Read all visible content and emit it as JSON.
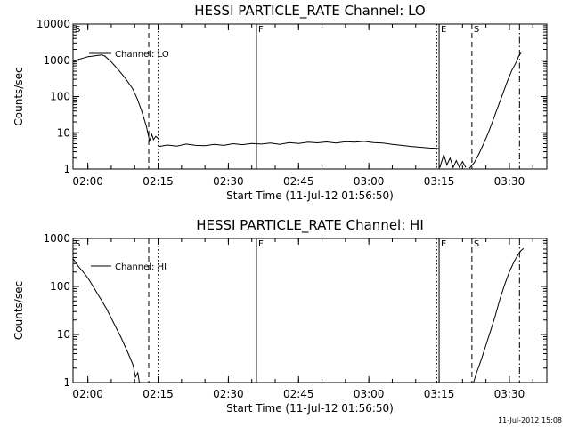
{
  "footer": {
    "timestamp": "11-Jul-2012 15:08"
  },
  "chart_data": [
    {
      "type": "line",
      "title": "HESSI PARTICLE_RATE Channel: LO",
      "xlabel": "Start Time (11-Jul-12 01:56:50)",
      "ylabel": "Counts/sec",
      "xlim": [
        "01:56:50",
        "03:38:00"
      ],
      "ylim": [
        1,
        10000
      ],
      "yscale": "log",
      "xticks": [
        "02:00",
        "02:15",
        "02:30",
        "02:45",
        "03:00",
        "03:15",
        "03:30"
      ],
      "yticks": [
        "1",
        "10",
        "100",
        "1000",
        "10000"
      ],
      "legend": "upper-left",
      "series": [
        {
          "name": "Channel: LO",
          "segments": [
            [
              [
                "01:56:50",
                900
              ],
              [
                "01:58:00",
                1050
              ],
              [
                "01:59:00",
                1150
              ],
              [
                "02:00:00",
                1250
              ],
              [
                "02:01:00",
                1300
              ],
              [
                "02:02:00",
                1350
              ],
              [
                "02:03:00",
                1400
              ],
              [
                "02:03:40",
                1300
              ],
              [
                "02:05:00",
                900
              ],
              [
                "02:06:30",
                550
              ],
              [
                "02:08:00",
                320
              ],
              [
                "02:09:30",
                170
              ],
              [
                "02:10:30",
                90
              ],
              [
                "02:11:30",
                40
              ],
              [
                "02:12:30",
                15
              ],
              [
                "02:13:10",
                6
              ],
              [
                "02:13:40",
                9
              ],
              [
                "02:14:00",
                6.5
              ],
              [
                "02:14:30",
                8
              ],
              [
                "02:15:00",
                7
              ]
            ],
            [
              [
                "02:15:10",
                4.2
              ],
              [
                "02:17:00",
                4.6
              ],
              [
                "02:19:00",
                4.3
              ],
              [
                "02:21:00",
                4.9
              ],
              [
                "02:23:00",
                4.5
              ],
              [
                "02:25:00",
                4.4
              ],
              [
                "02:27:00",
                4.8
              ],
              [
                "02:29:00",
                4.5
              ],
              [
                "02:31:00",
                5.0
              ],
              [
                "02:33:00",
                4.7
              ],
              [
                "02:35:00",
                5.1
              ],
              [
                "02:37:00",
                4.9
              ],
              [
                "02:39:00",
                5.2
              ],
              [
                "02:41:00",
                4.8
              ],
              [
                "02:43:00",
                5.4
              ],
              [
                "02:45:00",
                5.1
              ],
              [
                "02:47:00",
                5.5
              ],
              [
                "02:49:00",
                5.3
              ],
              [
                "02:51:00",
                5.6
              ],
              [
                "02:53:00",
                5.2
              ],
              [
                "02:55:00",
                5.7
              ],
              [
                "02:57:00",
                5.5
              ],
              [
                "02:59:00",
                5.8
              ],
              [
                "03:01:00",
                5.4
              ],
              [
                "03:03:00",
                5.2
              ],
              [
                "03:05:00",
                4.8
              ],
              [
                "03:07:00",
                4.5
              ],
              [
                "03:09:00",
                4.2
              ],
              [
                "03:11:00",
                4.0
              ],
              [
                "03:13:00",
                3.8
              ],
              [
                "03:14:30",
                3.7
              ],
              [
                "03:15:00",
                3.6
              ]
            ],
            [
              [
                "03:15:10",
                1.1
              ],
              [
                "03:16:00",
                2.5
              ],
              [
                "03:16:40",
                1.3
              ],
              [
                "03:17:20",
                2.0
              ],
              [
                "03:18:00",
                1.1
              ],
              [
                "03:18:40",
                1.7
              ],
              [
                "03:19:20",
                1.1
              ],
              [
                "03:20:00",
                1.6
              ],
              [
                "03:20:40",
                1.1
              ]
            ],
            [
              [
                "03:21:30",
                1.05
              ],
              [
                "03:22:30",
                1.5
              ],
              [
                "03:23:30",
                2.6
              ],
              [
                "03:24:30",
                5
              ],
              [
                "03:25:30",
                10
              ],
              [
                "03:26:30",
                22
              ],
              [
                "03:27:30",
                50
              ],
              [
                "03:28:30",
                110
              ],
              [
                "03:29:30",
                250
              ],
              [
                "03:30:30",
                520
              ],
              [
                "03:31:30",
                900
              ],
              [
                "03:32:00",
                1300
              ],
              [
                "03:32:30",
                1600
              ]
            ]
          ]
        }
      ],
      "markers": [
        {
          "time": "01:56:50",
          "style": "solid",
          "label": "S"
        },
        {
          "time": "02:13:00",
          "style": "dashed"
        },
        {
          "time": "02:15:00",
          "style": "dotted"
        },
        {
          "time": "02:36:00",
          "style": "solid",
          "label": "F"
        },
        {
          "time": "03:14:30",
          "style": "dotted"
        },
        {
          "time": "03:15:00",
          "style": "solid",
          "label": "E"
        },
        {
          "time": "03:22:00",
          "style": "dashed",
          "label": "S"
        },
        {
          "time": "03:32:10",
          "style": "dashdot"
        }
      ]
    },
    {
      "type": "line",
      "title": "HESSI PARTICLE_RATE Channel: HI",
      "xlabel": "Start Time (11-Jul-12 01:56:50)",
      "ylabel": "Counts/sec",
      "xlim": [
        "01:56:50",
        "03:38:00"
      ],
      "ylim": [
        1,
        1000
      ],
      "yscale": "log",
      "xticks": [
        "02:00",
        "02:15",
        "02:30",
        "02:45",
        "03:00",
        "03:15",
        "03:30"
      ],
      "yticks": [
        "1",
        "10",
        "100",
        "1000"
      ],
      "legend": "upper-left",
      "series": [
        {
          "name": "Channel: HI",
          "segments": [
            [
              [
                "01:56:50",
                380
              ],
              [
                "01:58:00",
                260
              ],
              [
                "01:59:00",
                200
              ],
              [
                "02:00:00",
                150
              ],
              [
                "02:01:00",
                105
              ],
              [
                "02:02:00",
                72
              ],
              [
                "02:03:00",
                50
              ],
              [
                "02:04:00",
                34
              ],
              [
                "02:05:00",
                22
              ],
              [
                "02:06:00",
                14
              ],
              [
                "02:07:00",
                9
              ],
              [
                "02:08:00",
                5.5
              ],
              [
                "02:09:00",
                3.3
              ],
              [
                "02:09:40",
                2.3
              ],
              [
                "02:10:10",
                1.3
              ],
              [
                "02:10:40",
                1.6
              ],
              [
                "02:11:00",
                1.0
              ]
            ],
            [
              [
                "03:22:20",
                1.0
              ],
              [
                "03:23:00",
                1.6
              ],
              [
                "03:24:00",
                3
              ],
              [
                "03:25:00",
                6
              ],
              [
                "03:26:00",
                12
              ],
              [
                "03:27:00",
                25
              ],
              [
                "03:28:00",
                55
              ],
              [
                "03:29:00",
                110
              ],
              [
                "03:30:00",
                200
              ],
              [
                "03:31:00",
                330
              ],
              [
                "03:32:00",
                480
              ],
              [
                "03:32:30",
                560
              ],
              [
                "03:33:00",
                620
              ]
            ]
          ]
        }
      ],
      "markers": [
        {
          "time": "01:56:50",
          "style": "solid",
          "label": "S"
        },
        {
          "time": "02:13:00",
          "style": "dashed"
        },
        {
          "time": "02:15:00",
          "style": "dotted"
        },
        {
          "time": "02:36:00",
          "style": "solid",
          "label": "F"
        },
        {
          "time": "03:14:30",
          "style": "dotted"
        },
        {
          "time": "03:15:00",
          "style": "solid",
          "label": "E"
        },
        {
          "time": "03:22:00",
          "style": "dashed",
          "label": "S"
        },
        {
          "time": "03:32:10",
          "style": "dashdot"
        }
      ]
    }
  ]
}
